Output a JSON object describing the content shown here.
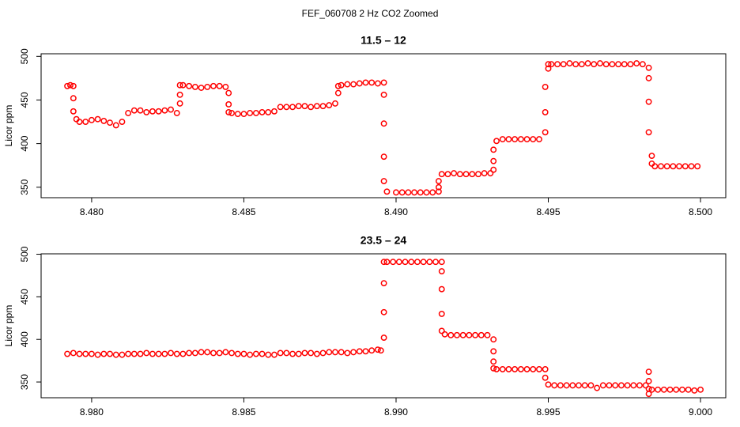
{
  "title": "FEF_060708  2 Hz CO2 Zoomed",
  "chart_data": [
    {
      "type": "scatter",
      "title": "11.5 – 12",
      "y_label": "Licor ppm",
      "color": "#ff0000",
      "xlim": [
        8.47834,
        8.50083
      ],
      "ylim": [
        338,
        503
      ],
      "xticks": [
        {
          "value": 8.48,
          "label": "8.480"
        },
        {
          "value": 8.485,
          "label": "8.485"
        },
        {
          "value": 8.49,
          "label": "8.490"
        },
        {
          "value": 8.495,
          "label": "8.495"
        },
        {
          "value": 8.5,
          "label": "8.500"
        }
      ],
      "yticks": [
        350,
        400,
        450,
        500
      ],
      "x": [
        8.4792,
        8.4793,
        8.4794,
        8.4794,
        8.4794,
        8.4795,
        8.4796,
        8.4798,
        8.48,
        8.4802,
        8.4804,
        8.4806,
        8.4808,
        8.481,
        8.4812,
        8.4814,
        8.4816,
        8.4818,
        8.482,
        8.4822,
        8.4824,
        8.4826,
        8.4828,
        8.4829,
        8.4829,
        8.4829,
        8.483,
        8.4832,
        8.4834,
        8.4836,
        8.4838,
        8.484,
        8.4842,
        8.4844,
        8.4845,
        8.4845,
        8.4845,
        8.4846,
        8.4848,
        8.485,
        8.4852,
        8.4854,
        8.4856,
        8.4858,
        8.486,
        8.4862,
        8.4864,
        8.4866,
        8.4868,
        8.487,
        8.4872,
        8.4874,
        8.4876,
        8.4878,
        8.488,
        8.4881,
        8.4881,
        8.4882,
        8.4884,
        8.4886,
        8.4888,
        8.489,
        8.4892,
        8.4894,
        8.4896,
        8.4896,
        8.4896,
        8.4896,
        8.4896,
        8.4897,
        8.49,
        8.4902,
        8.4904,
        8.4906,
        8.4908,
        8.491,
        8.4912,
        8.4914,
        8.4914,
        8.4914,
        8.4915,
        8.4917,
        8.4919,
        8.4921,
        8.4923,
        8.4925,
        8.4927,
        8.4929,
        8.4931,
        8.4932,
        8.4932,
        8.4932,
        8.4933,
        8.4935,
        8.4937,
        8.4939,
        8.4941,
        8.4943,
        8.4945,
        8.4947,
        8.4949,
        8.4949,
        8.4949,
        8.495,
        8.495,
        8.4951,
        8.4953,
        8.4955,
        8.4957,
        8.4959,
        8.4961,
        8.4963,
        8.4965,
        8.4967,
        8.4969,
        8.4971,
        8.4973,
        8.4975,
        8.4977,
        8.4979,
        8.4981,
        8.4983,
        8.4983,
        8.4983,
        8.4983,
        8.4984,
        8.4984,
        8.4985,
        8.4987,
        8.4989,
        8.4991,
        8.4993,
        8.4995,
        8.4997,
        8.4999
      ],
      "values": [
        466,
        467,
        466,
        452,
        437,
        428,
        425,
        425,
        427,
        428,
        426,
        424,
        421,
        425,
        435,
        438,
        438,
        436,
        437,
        437,
        438,
        439,
        435,
        446,
        456,
        467,
        467,
        466,
        465,
        464,
        465,
        466,
        466,
        465,
        458,
        445,
        436,
        435,
        434,
        434,
        435,
        435,
        436,
        436,
        437,
        442,
        442,
        442,
        443,
        443,
        442,
        443,
        443,
        444,
        446,
        458,
        466,
        467,
        468,
        468,
        469,
        470,
        470,
        469,
        470,
        456,
        423,
        385,
        357,
        345,
        344,
        344,
        344,
        344,
        344,
        344,
        344,
        345,
        350,
        357,
        365,
        365,
        366,
        365,
        365,
        365,
        365,
        366,
        366,
        370,
        380,
        393,
        403,
        405,
        405,
        405,
        405,
        405,
        405,
        405,
        413,
        436,
        465,
        486,
        491,
        491,
        491,
        491,
        492,
        491,
        491,
        492,
        491,
        492,
        491,
        491,
        491,
        491,
        491,
        492,
        491,
        487,
        475,
        448,
        413,
        386,
        377,
        374,
        374,
        374,
        374,
        374,
        374,
        374,
        374
      ]
    },
    {
      "type": "scatter",
      "title": "23.5 – 24",
      "y_label": "Licor ppm",
      "color": "#ff0000",
      "xlim": [
        8.97834,
        9.00083
      ],
      "ylim": [
        331.5,
        500.5
      ],
      "xticks": [
        {
          "value": 8.98,
          "label": "8.980"
        },
        {
          "value": 8.985,
          "label": "8.985"
        },
        {
          "value": 8.99,
          "label": "8.990"
        },
        {
          "value": 8.995,
          "label": "8.995"
        },
        {
          "value": 9.0,
          "label": "9.000"
        }
      ],
      "yticks": [
        350,
        400,
        450,
        500
      ],
      "x": [
        8.9792,
        8.9794,
        8.9796,
        8.9798,
        8.98,
        8.9802,
        8.9804,
        8.9806,
        8.9808,
        8.981,
        8.9812,
        8.9814,
        8.9816,
        8.9818,
        8.982,
        8.9822,
        8.9824,
        8.9826,
        8.9828,
        8.983,
        8.9832,
        8.9834,
        8.9836,
        8.9838,
        8.984,
        8.9842,
        8.9844,
        8.9846,
        8.9848,
        8.985,
        8.9852,
        8.9854,
        8.9856,
        8.9858,
        8.986,
        8.9862,
        8.9864,
        8.9866,
        8.9868,
        8.987,
        8.9872,
        8.9874,
        8.9876,
        8.9878,
        8.988,
        8.9882,
        8.9884,
        8.9886,
        8.9888,
        8.989,
        8.9892,
        8.9894,
        8.9895,
        8.9896,
        8.9896,
        8.9896,
        8.9896,
        8.9897,
        8.9899,
        8.9901,
        8.9903,
        8.9905,
        8.9907,
        8.9909,
        8.9911,
        8.9913,
        8.9915,
        8.9915,
        8.9915,
        8.9915,
        8.9915,
        8.9916,
        8.9918,
        8.992,
        8.9922,
        8.9924,
        8.9926,
        8.9928,
        8.993,
        8.9932,
        8.9932,
        8.9932,
        8.9932,
        8.9933,
        8.9935,
        8.9937,
        8.9939,
        8.9941,
        8.9943,
        8.9945,
        8.9947,
        8.9949,
        8.9949,
        8.995,
        8.9952,
        8.9954,
        8.9956,
        8.9958,
        8.996,
        8.9962,
        8.9964,
        8.9966,
        8.9968,
        8.997,
        8.9972,
        8.9974,
        8.9976,
        8.9978,
        8.998,
        8.9982,
        8.9983,
        8.9983,
        8.9983,
        8.9983,
        8.9984,
        8.9986,
        8.9988,
        8.999,
        8.9992,
        8.9994,
        8.9996,
        8.9998,
        9.0
      ],
      "values": [
        383,
        384,
        383,
        383,
        383,
        382,
        383,
        383,
        382,
        382,
        383,
        383,
        383,
        384,
        383,
        383,
        383,
        384,
        383,
        383,
        384,
        384,
        385,
        385,
        384,
        384,
        385,
        384,
        383,
        383,
        382,
        383,
        383,
        382,
        382,
        384,
        384,
        383,
        383,
        384,
        384,
        383,
        384,
        385,
        385,
        385,
        384,
        385,
        386,
        386,
        387,
        388,
        387,
        402,
        432,
        466,
        491,
        491,
        491,
        491,
        491,
        491,
        491,
        491,
        491,
        491,
        491,
        480,
        459,
        430,
        410,
        406,
        405,
        405,
        405,
        405,
        405,
        405,
        405,
        400,
        386,
        374,
        366,
        365,
        365,
        365,
        365,
        365,
        365,
        365,
        365,
        365,
        355,
        347,
        346,
        346,
        346,
        346,
        346,
        346,
        346,
        343,
        346,
        346,
        346,
        346,
        346,
        346,
        346,
        346,
        362,
        351,
        342,
        336,
        341,
        341,
        341,
        341,
        341,
        341,
        341,
        340,
        341
      ]
    }
  ]
}
